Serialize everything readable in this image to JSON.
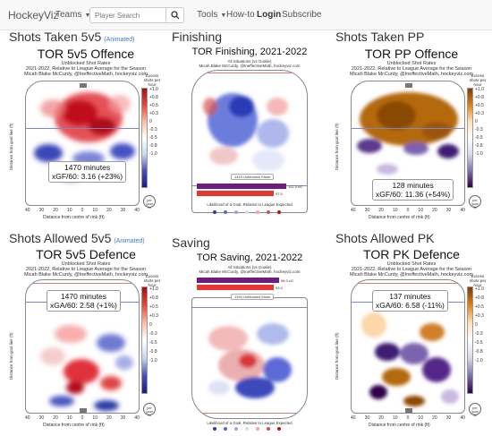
{
  "nav": {
    "brand": "HockeyViz",
    "teams": "Teams",
    "search_placeholder": "Player Search",
    "tools": "Tools",
    "howto": "How-to",
    "login": "Login",
    "subscribe": "Subscribe"
  },
  "sections": {
    "shots_taken_5v5": "Shots Taken 5v5",
    "animated": "(Animated)",
    "finishing": "Finishing",
    "shots_taken_pp": "Shots Taken PP",
    "shots_allowed_5v5": "Shots Allowed 5v5",
    "saving": "Saving",
    "shots_allowed_pk": "Shots Allowed PK"
  },
  "panels": {
    "offence_5v5": {
      "title": "TOR 5v5 Offence",
      "sub1": "Unblocked Shot Rates",
      "sub2": "2021-2022, Relative to League Average for the Season",
      "sub3": "Micah Blake McCurdy, @IneffectiveMath, hockeyviz.com",
      "minutes": "1470 minutes",
      "stat": "xGF/60: 3.16 (+23%)"
    },
    "pp_offence": {
      "title": "TOR PP Offence",
      "sub1": "Unblocked Shot Rates",
      "sub2": "2021-2022, Relative to League Average for the Season",
      "sub3": "Micah Blake McCurdy, @IneffectiveMath, hockeyviz.com",
      "minutes": "128 minutes",
      "stat": "xGF/60: 11.36 (+54%)"
    },
    "defence_5v5": {
      "title": "TOR 5v5 Defence",
      "sub1": "Unblocked Shot Rates",
      "sub2": "2021-2022, Relative to League Average for the Season",
      "sub3": "Micah Blake McCurdy, @IneffectiveMath, hockeyviz.com",
      "minutes": "1470 minutes",
      "stat": "xGA/60: 2.58 (+1%)"
    },
    "pk_defence": {
      "title": "TOR PK Defence",
      "sub1": "Unblocked Shot Rates",
      "sub2": "2021-2022, Relative to League Average for the Season",
      "sub3": "Micah Blake McCurdy, @IneffectiveMath, hockeyviz.com",
      "minutes": "137 minutes",
      "stat": "xGA/60: 6.58 (-11%)"
    },
    "finishing": {
      "title": "TOR Finishing, 2021-2022",
      "sub1": "All Situations (vs Goalie)",
      "sub2": "Micah Blake McCurdy, @IneffectiveMath, hockeyviz.com",
      "unblocked": "1419 Unblocked Shots",
      "bar1": "112.3 xG",
      "bar2": "97.5",
      "legend": "Likelihood of a Goal, Relative to League Expected"
    },
    "saving": {
      "title": "TOR Saving, 2021-2022",
      "sub1": "All Situations (vs Goalie)",
      "sub2": "Micah Blake McCurdy, @IneffectiveMath, hockeyviz.com",
      "unblocked": "1294 Unblocked Shots",
      "bar1": "98.3 xG",
      "bar2": "93.4",
      "legend": "Likelihood of a Goal, Relative to League Expected"
    }
  },
  "axis": {
    "ylabel": "Distance from goal line (ft)",
    "xlabel": "Distance from centre of rink (ft)",
    "yticks": [
      "0",
      "10",
      "20",
      "30",
      "40",
      "50",
      "60",
      "70",
      "80",
      "90"
    ],
    "xticks": [
      "40",
      "30",
      "20",
      "10",
      "0",
      "10",
      "20",
      "30",
      "40"
    ],
    "cbar_ticks": [
      "+1.0",
      "+0.8",
      "+0.5",
      "+0.3",
      "0",
      "-0.3",
      "-0.5",
      "-0.8",
      "-1.0"
    ],
    "cbar_label": "Excess shots per hour",
    "perhr": "per goal /hr"
  },
  "colors": {
    "red": "#d7191c",
    "blue": "#2b3aa8",
    "orange": "#b35806",
    "purple": "#542788"
  }
}
